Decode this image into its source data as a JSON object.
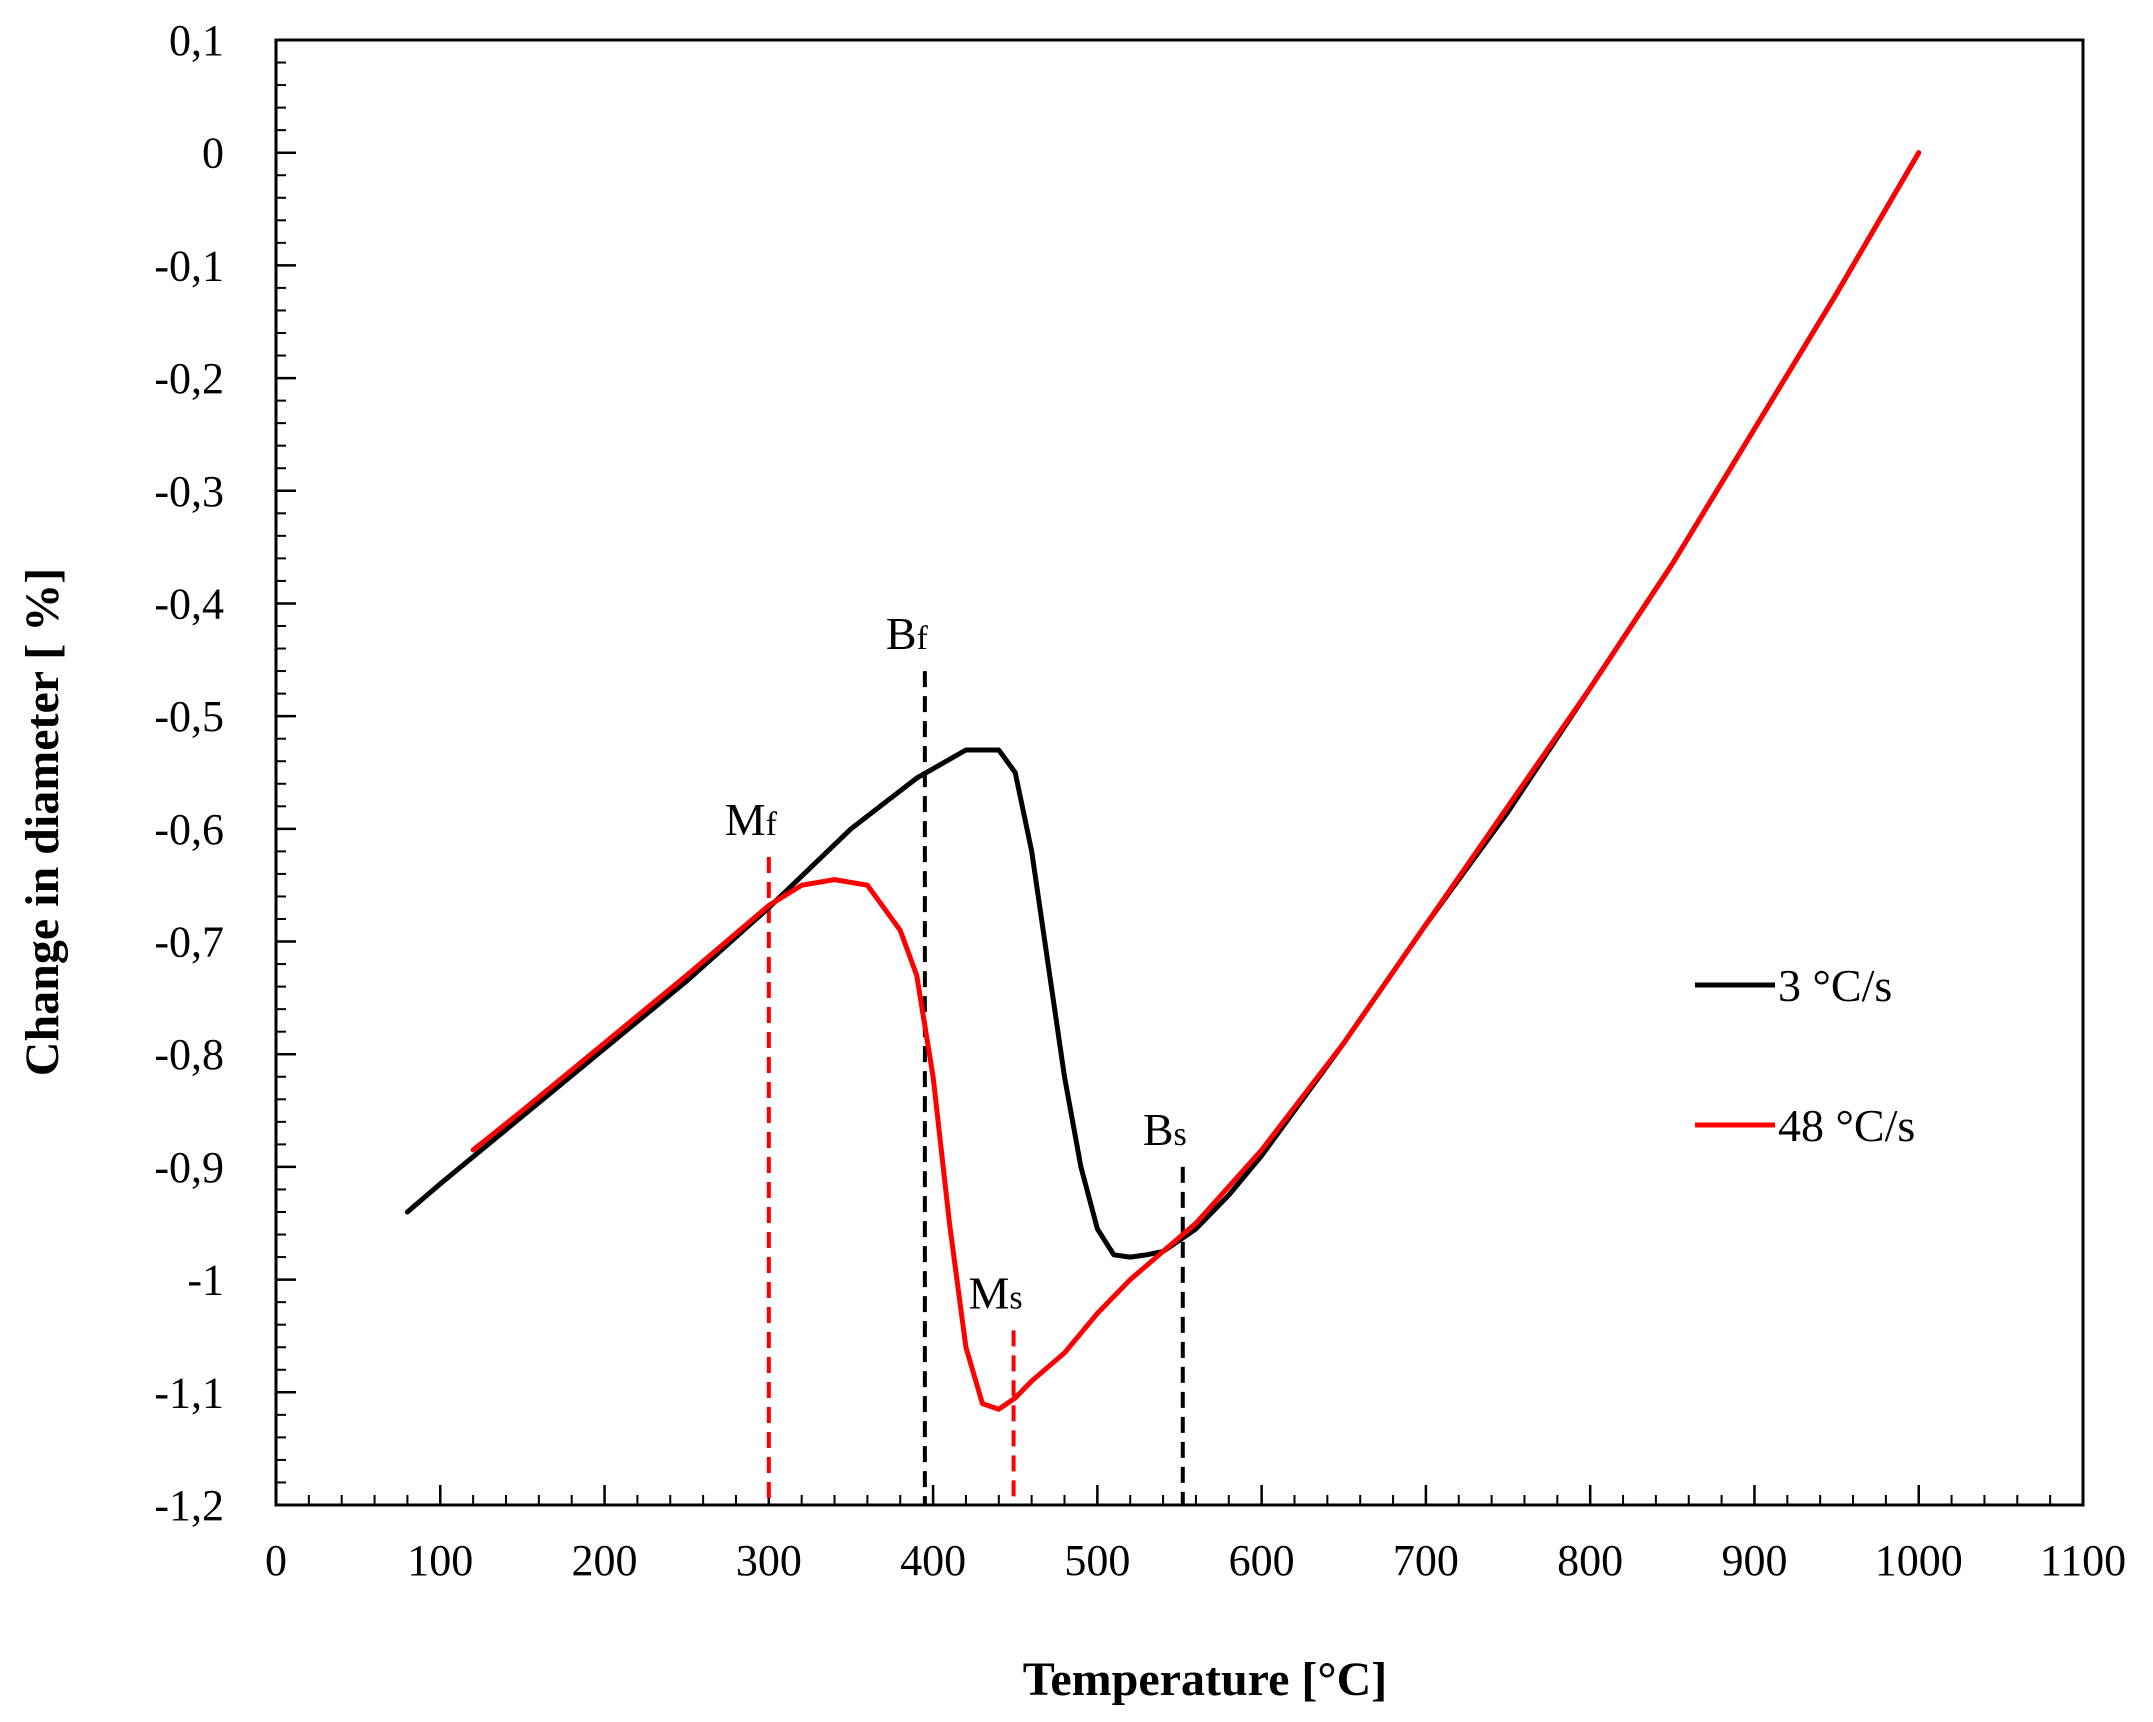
{
  "chart_data": {
    "type": "line",
    "title": "",
    "xlabel": "Temperature [°C]",
    "ylabel": "Change in diameter [ %]",
    "xlim": [
      0,
      1100
    ],
    "ylim": [
      -1.2,
      0.1
    ],
    "x_ticks": [
      0,
      100,
      200,
      300,
      400,
      500,
      600,
      700,
      800,
      900,
      1000,
      1100
    ],
    "x_tick_labels": [
      "0",
      "100",
      "200",
      "300",
      "400",
      "500",
      "600",
      "700",
      "800",
      "900",
      "1000",
      "1100"
    ],
    "y_ticks": [
      0.1,
      0,
      -0.1,
      -0.2,
      -0.3,
      -0.4,
      -0.5,
      -0.6,
      -0.7,
      -0.8,
      -0.9,
      -1,
      -1.1,
      -1.2
    ],
    "y_tick_labels": [
      "0,1",
      "0",
      "-0,1",
      "-0,2",
      "-0,3",
      "-0,4",
      "-0,5",
      "-0,6",
      "-0,7",
      "-0,8",
      "-0,9",
      "-1",
      "-1,1",
      "-1,2"
    ],
    "grid": false,
    "legend_position": "right",
    "series": [
      {
        "name": "3 °C/s",
        "color": "#000000",
        "x": [
          80,
          100,
          150,
          200,
          250,
          300,
          350,
          390,
          420,
          440,
          450,
          460,
          470,
          480,
          490,
          500,
          510,
          520,
          530,
          540,
          550,
          560,
          580,
          600,
          650,
          700,
          750,
          800,
          850,
          900,
          950,
          1000
        ],
        "y": [
          -0.94,
          -0.915,
          -0.855,
          -0.795,
          -0.735,
          -0.67,
          -0.6,
          -0.555,
          -0.53,
          -0.53,
          -0.55,
          -0.62,
          -0.72,
          -0.82,
          -0.9,
          -0.955,
          -0.978,
          -0.98,
          -0.978,
          -0.975,
          -0.965,
          -0.955,
          -0.925,
          -0.89,
          -0.79,
          -0.685,
          -0.585,
          -0.475,
          -0.365,
          -0.245,
          -0.125,
          0.0
        ]
      },
      {
        "name": "48 °C/s",
        "color": "#ff0000",
        "x": [
          120,
          150,
          200,
          250,
          300,
          320,
          340,
          360,
          380,
          390,
          400,
          410,
          420,
          430,
          440,
          450,
          460,
          480,
          500,
          520,
          540,
          560,
          600,
          650,
          700,
          750,
          800,
          850,
          900,
          950,
          1000
        ],
        "y": [
          -0.885,
          -0.85,
          -0.79,
          -0.73,
          -0.668,
          -0.65,
          -0.645,
          -0.65,
          -0.69,
          -0.73,
          -0.82,
          -0.95,
          -1.06,
          -1.11,
          -1.115,
          -1.105,
          -1.09,
          -1.065,
          -1.03,
          -1.0,
          -0.975,
          -0.95,
          -0.885,
          -0.79,
          -0.685,
          -0.58,
          -0.475,
          -0.365,
          -0.245,
          -0.125,
          0.0
        ]
      }
    ],
    "annotations": [
      {
        "label": "M",
        "sub": "f",
        "x": 300,
        "y_top": -0.625,
        "color": "#ff0000"
      },
      {
        "label": "B",
        "sub": "f",
        "x": 395,
        "y_top": -0.46,
        "color": "#000000"
      },
      {
        "label": "M",
        "sub": "s",
        "x": 449,
        "y_top": -1.045,
        "color": "#ff0000"
      },
      {
        "label": "B",
        "sub": "s",
        "x": 552,
        "y_top": -0.9,
        "color": "#000000"
      }
    ]
  }
}
